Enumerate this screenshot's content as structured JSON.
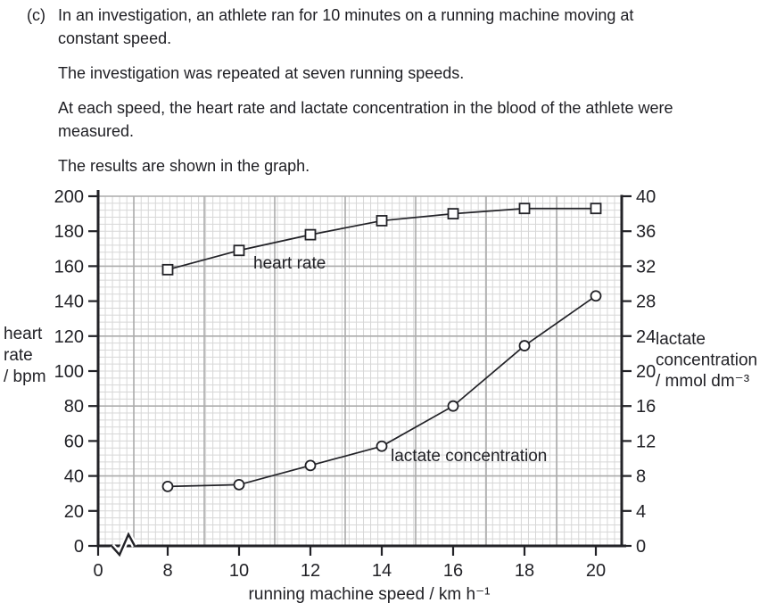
{
  "question": {
    "label": "(c)",
    "paragraphs": [
      "In an investigation, an athlete ran for 10 minutes on a running machine moving at constant speed.",
      "The investigation was repeated at seven running speeds.",
      "At each speed, the heart rate and lactate concentration in the blood of the athlete were measured.",
      "The results are shown in the graph."
    ]
  },
  "chart_data": {
    "type": "line",
    "title": "",
    "x": [
      8,
      10,
      12,
      14,
      16,
      18,
      20
    ],
    "x_ticks": [
      0,
      8,
      10,
      12,
      14,
      16,
      18,
      20
    ],
    "x_axis": {
      "label": "running machine speed / km h⁻¹",
      "break_between_0_and_8": true
    },
    "left_axis": {
      "title_lines": [
        "heart",
        "rate",
        "/ bpm"
      ],
      "min": 0,
      "max": 200,
      "tick_step": 20
    },
    "right_axis": {
      "title_lines": [
        "lactate",
        "concentration",
        "/ mmol dm⁻³"
      ],
      "min": 0,
      "max": 40,
      "tick_step": 4
    },
    "grid": true,
    "legend_position": "inline-annotations",
    "series": [
      {
        "name": "heart rate",
        "axis": "left",
        "unit": "bpm",
        "marker": "square",
        "x": [
          8,
          10,
          12,
          14,
          16,
          18,
          20
        ],
        "values": [
          158,
          169,
          178,
          186,
          190,
          193,
          193
        ]
      },
      {
        "name": "lactate concentration",
        "axis": "right",
        "unit": "mmol dm⁻³",
        "marker": "circle",
        "x": [
          8,
          10,
          12,
          14,
          16,
          18,
          20
        ],
        "values": [
          6.8,
          7.0,
          9.2,
          11.4,
          16.0,
          22.9,
          28.6
        ]
      }
    ],
    "style": {
      "ink": "#222227",
      "grid_fine": "#d7d7d7",
      "grid_major": "#ababab",
      "marker_fill": "#ffffff"
    }
  }
}
